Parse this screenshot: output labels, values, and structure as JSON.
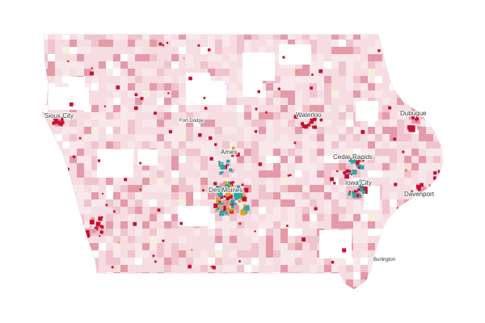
{
  "map": {
    "region": "Iowa",
    "colors": {
      "background": "#ffffff",
      "base_fill": "#f6dde2",
      "light_fill": "#f9e8eb",
      "medium_fill": "#efc4cc",
      "dark_fill": "#e49aa8",
      "strong_red": "#c8102e",
      "teal": "#2ba8a5",
      "gold": "#d9a21b",
      "cream": "#f7efdc",
      "no_data": "#ffffff"
    },
    "cities": [
      {
        "id": "sioux-city",
        "name": "Sioux City"
      },
      {
        "id": "fort-dodge",
        "name": "Fort Dodge"
      },
      {
        "id": "waterloo",
        "name": "Waterloo"
      },
      {
        "id": "dubuque",
        "name": "Dubuque"
      },
      {
        "id": "ames",
        "name": "Ames"
      },
      {
        "id": "cedar-rapids",
        "name": "Cedar Rapids"
      },
      {
        "id": "iowa-city",
        "name": "Iowa City"
      },
      {
        "id": "des-moines",
        "name": "Des Moines"
      },
      {
        "id": "davenport",
        "name": "Davenport"
      },
      {
        "id": "burlington",
        "name": "Burlington"
      }
    ]
  }
}
